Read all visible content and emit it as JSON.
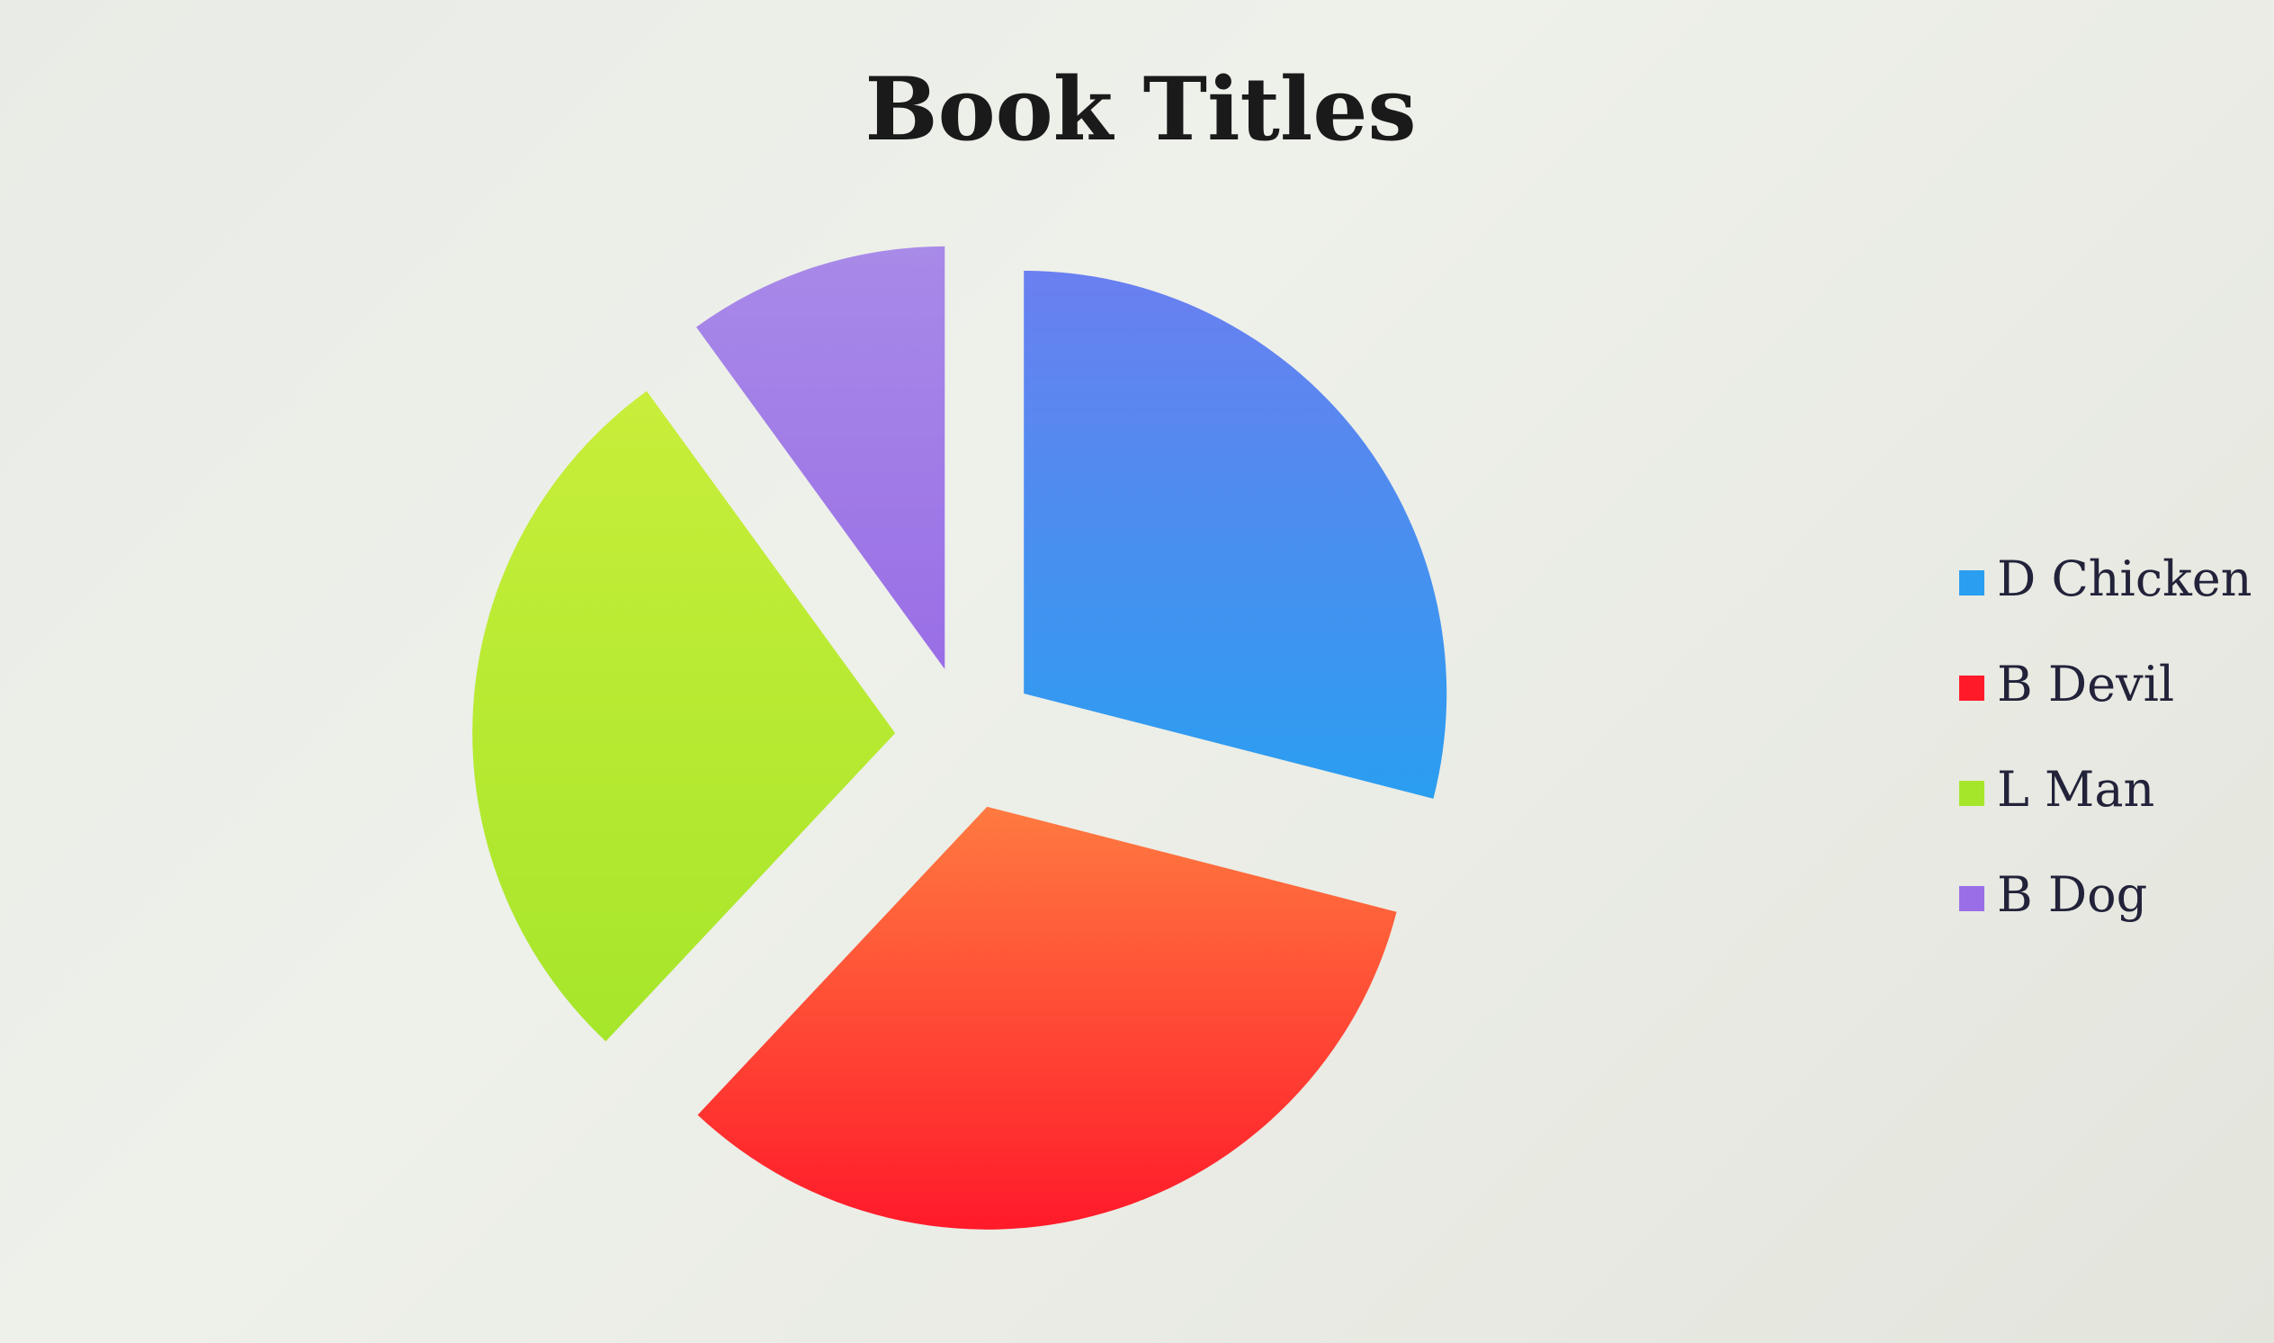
{
  "chart_data": {
    "type": "pie",
    "title": "Book Titles",
    "exploded": true,
    "legend_position": "right",
    "categories": [
      "D Chicken",
      "B Devil",
      "L Man",
      "B Dog"
    ],
    "values": [
      29,
      33,
      28,
      10
    ],
    "colors": [
      "#2a9ef0",
      "#ff1a2a",
      "#a6e62a",
      "#9a6ee6"
    ],
    "colors_light": [
      "#6a7ff0",
      "#ff7a40",
      "#c8ee3a",
      "#a88ae8"
    ]
  }
}
